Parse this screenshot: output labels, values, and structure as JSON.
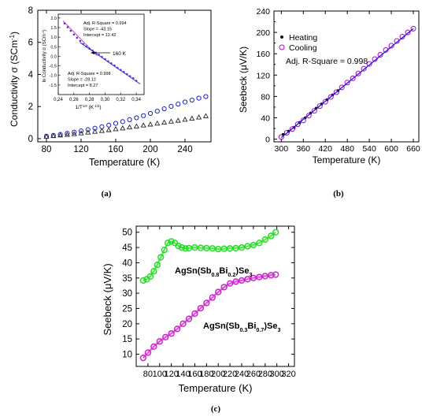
{
  "chart_data": [
    {
      "id": "a",
      "panel_label": "(a)",
      "type": "scatter",
      "xlabel": "Temperature (K)",
      "ylabel": "Conductivity σ (SCm",
      "ylabel_sup": "-1",
      "ylabel_end": ")",
      "xlim": [
        70,
        270
      ],
      "ylim": [
        -0.2,
        8
      ],
      "xticks": [
        80,
        120,
        160,
        200,
        240
      ],
      "yticks": [
        0,
        2,
        4,
        6,
        8
      ],
      "colors": {
        "circles": "#1f1fbf",
        "triangles": "#222222"
      },
      "series": [
        {
          "marker": "circle",
          "x": [
            80,
            88,
            96,
            104,
            112,
            120,
            128,
            136,
            144,
            152,
            160,
            168,
            176,
            184,
            192,
            200,
            208,
            216,
            224,
            232,
            240,
            248,
            256,
            264
          ],
          "values": [
            0.15,
            0.2,
            0.26,
            0.33,
            0.4,
            0.48,
            0.56,
            0.65,
            0.74,
            0.84,
            0.95,
            1.06,
            1.18,
            1.3,
            1.43,
            1.57,
            1.71,
            1.86,
            2.01,
            2.15,
            2.28,
            2.4,
            2.52,
            2.62
          ]
        },
        {
          "marker": "triangle",
          "x": [
            80,
            88,
            96,
            104,
            112,
            120,
            128,
            136,
            144,
            152,
            160,
            168,
            176,
            184,
            192,
            200,
            208,
            216,
            224,
            232,
            240,
            248,
            256,
            264
          ],
          "values": [
            0.12,
            0.16,
            0.2,
            0.24,
            0.28,
            0.33,
            0.38,
            0.43,
            0.48,
            0.53,
            0.59,
            0.64,
            0.7,
            0.76,
            0.82,
            0.88,
            0.94,
            1.0,
            1.06,
            1.12,
            1.18,
            1.25,
            1.32,
            1.4
          ]
        }
      ],
      "inset": {
        "xlabel": "1/T",
        "xlabel_exp": "1/4",
        "xlabel_units": "(K",
        "xlabel_units_exp": "-1/4",
        "xlabel_end": ")",
        "ylabel": "ln Conductivity σ (SCm",
        "ylabel_sup": "-1",
        "ylabel_end": ")",
        "xlim": [
          0.24,
          0.35
        ],
        "ylim": [
          -2.0,
          2.2
        ],
        "xticks": [
          "0,24",
          "0,26",
          "0,28",
          "0,30",
          "0,32",
          "0,34"
        ],
        "xtick_values": [
          0.24,
          0.26,
          0.28,
          0.3,
          0.32,
          0.34
        ],
        "yticks": [
          "2.0",
          "1.5",
          "1.0",
          "0.5",
          "0.0",
          "-0.5",
          "-1.0",
          "-1.5"
        ],
        "ytick_values": [
          2.0,
          1.5,
          1.0,
          0.5,
          0.0,
          -0.5,
          -1.0,
          -1.5
        ],
        "fit1": [
          "Adj. R-Square = 0.994",
          "Slope = -43.15",
          "Intercept = 12.42"
        ],
        "fit2": [
          "Adj. R-Square = 0.998",
          "Slope = -28.12",
          "Intercept = 8.27"
        ],
        "arrow_label": "160 K",
        "points": {
          "x": [
            0.248,
            0.252,
            0.256,
            0.26,
            0.264,
            0.268,
            0.272,
            0.276,
            0.28,
            0.284,
            0.288,
            0.292,
            0.296,
            0.3,
            0.304,
            0.308,
            0.312,
            0.316,
            0.32,
            0.324,
            0.328,
            0.332,
            0.336,
            0.34
          ],
          "values": [
            1.72,
            1.52,
            1.33,
            1.14,
            0.97,
            0.8,
            0.64,
            0.51,
            0.4,
            0.3,
            0.19,
            0.08,
            -0.03,
            -0.15,
            -0.26,
            -0.37,
            -0.48,
            -0.6,
            -0.71,
            -0.82,
            -0.93,
            -1.04,
            -1.15,
            -1.28
          ]
        }
      }
    },
    {
      "id": "b",
      "panel_label": "(b)",
      "type": "scatter",
      "xlabel": "Temperature (K)",
      "ylabel": "Seebeck (μV/K)",
      "xlim": [
        280,
        675
      ],
      "ylim": [
        -5,
        240
      ],
      "xticks": [
        300,
        360,
        420,
        480,
        540,
        600,
        660
      ],
      "yticks": [
        0,
        20,
        40,
        60,
        80,
        100,
        120,
        140,
        160,
        180,
        200,
        220,
        240
      ],
      "annotation": "Adj. R-Square = 0.998",
      "legend_position": "top-left",
      "colors": {
        "heating": "#111111",
        "cooling": "#b000c8",
        "fit": "#1a1ad6"
      },
      "fit_line": {
        "x": [
          300,
          660
        ],
        "values": [
          3,
          207
        ]
      },
      "series": [
        {
          "name": "Heating",
          "marker": "dot",
          "x": [
            305,
            320,
            335,
            350,
            365,
            380,
            395,
            410,
            425,
            440,
            455
          ],
          "values": [
            9,
            15,
            22,
            31,
            40,
            49,
            58,
            66,
            74,
            83,
            91
          ]
        },
        {
          "name": "Cooling",
          "marker": "circle",
          "x": [
            300,
            315,
            330,
            345,
            360,
            375,
            390,
            405,
            420,
            435,
            450,
            465,
            480,
            495,
            510,
            525,
            540,
            555,
            570,
            585,
            600,
            615,
            630,
            645,
            660
          ],
          "values": [
            4,
            12,
            19,
            28,
            35,
            44,
            53,
            62,
            70,
            79,
            88,
            97,
            106,
            114,
            123,
            132,
            141,
            150,
            158,
            167,
            175,
            184,
            192,
            200,
            207
          ]
        }
      ]
    },
    {
      "id": "c",
      "panel_label": "(c)",
      "type": "scatter",
      "xlabel": "Temperature (K)",
      "ylabel": "Seebeck (μV/K)",
      "xlim": [
        60,
        330
      ],
      "ylim": [
        6,
        52
      ],
      "xticks": [
        80,
        100,
        120,
        140,
        160,
        180,
        200,
        220,
        240,
        260,
        280,
        300,
        320
      ],
      "yticks": [
        10,
        15,
        20,
        25,
        30,
        35,
        40,
        45,
        50
      ],
      "colors": {
        "green": "#22dd22",
        "magenta": "#cc22cc"
      },
      "labels": [
        {
          "pre": "AgSn(Sb",
          "s1": "0.8",
          "mid": "Bi",
          "s2": "0.2",
          "post": ")Se",
          "s3": "3"
        },
        {
          "pre": "AgSn(Sb",
          "s1": "0.3",
          "mid": "Bi",
          "s2": "0.7",
          "post": ")Se",
          "s3": "3"
        }
      ],
      "series": [
        {
          "marker": "circle",
          "x": [
            72,
            78,
            84,
            90,
            96,
            102,
            108,
            114,
            120,
            126,
            132,
            138,
            144,
            150,
            160,
            170,
            180,
            190,
            200,
            210,
            220,
            230,
            240,
            250,
            260,
            270,
            280,
            290,
            298
          ],
          "values": [
            34.2,
            34.6,
            35.5,
            37.2,
            39.3,
            41.8,
            44.2,
            46.5,
            47.0,
            46.5,
            45.5,
            45.0,
            44.7,
            44.8,
            45.0,
            44.9,
            44.8,
            44.7,
            44.5,
            44.6,
            44.7,
            44.8,
            45.0,
            45.4,
            45.8,
            46.5,
            47.6,
            48.8,
            50.0
          ]
        },
        {
          "marker": "circle",
          "x": [
            72,
            80,
            90,
            100,
            110,
            120,
            130,
            140,
            150,
            160,
            170,
            180,
            190,
            200,
            210,
            220,
            230,
            240,
            250,
            260,
            270,
            280,
            290,
            298
          ],
          "values": [
            8.8,
            10.5,
            12.5,
            14.2,
            15.6,
            16.8,
            18.3,
            20.0,
            21.6,
            23.3,
            25.1,
            26.8,
            28.6,
            30.4,
            32.0,
            33.2,
            33.8,
            34.2,
            34.6,
            35.0,
            35.3,
            35.6,
            35.9,
            36.1
          ]
        }
      ]
    }
  ]
}
